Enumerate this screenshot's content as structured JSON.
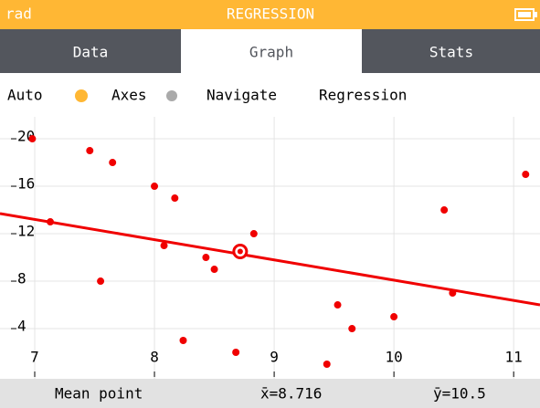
{
  "header": {
    "mode": "rad",
    "title": "REGRESSION"
  },
  "tabs": [
    "Data",
    "Graph",
    "Stats"
  ],
  "toolbar": [
    "Auto",
    "Axes",
    "Navigate",
    "Regression"
  ],
  "footer": {
    "label": "Mean point"
  },
  "chart_data": {
    "type": "scatter",
    "x": [
      6.98,
      7.13,
      7.46,
      7.55,
      7.65,
      8.0,
      8.08,
      8.17,
      8.24,
      8.43,
      8.5,
      8.68,
      8.83,
      9.44,
      9.53,
      9.65,
      10.0,
      10.42,
      10.49,
      11.1
    ],
    "values": [
      20,
      13,
      19,
      8,
      18,
      16,
      11,
      15,
      3,
      10,
      9,
      2,
      12,
      1,
      6,
      4,
      5,
      14,
      7,
      17
    ],
    "color": "#f00000",
    "regression": {
      "x": [
        6.71,
        11.22
      ],
      "y": [
        13.7,
        6.0
      ],
      "color": "#f00000"
    },
    "mean": {
      "x": 8.716,
      "y": 10.5,
      "x_label": "x̄=8.716",
      "y_label": "ȳ=10.5"
    },
    "xlim": [
      6.71,
      11.22
    ],
    "ylim": [
      -0.23,
      21.85
    ],
    "xticks": [
      7,
      8,
      9,
      10,
      11
    ],
    "yticks": [
      4,
      8,
      12,
      16,
      20
    ],
    "grid": true
  }
}
